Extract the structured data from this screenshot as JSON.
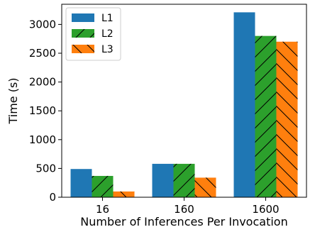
{
  "chart_data": {
    "type": "bar",
    "xlabel": "Number of Inferences Per Invocation",
    "ylabel": "Time (s)",
    "categories": [
      "16",
      "160",
      "1600"
    ],
    "ylim": [
      0,
      3350
    ],
    "yticks": [
      0,
      500,
      1000,
      1500,
      2000,
      2500,
      3000
    ],
    "grid": false,
    "legend_position": "top-left",
    "series": [
      {
        "name": "L1",
        "values": [
          490,
          580,
          3210
        ],
        "color": "#1f77b4",
        "hatch": "none"
      },
      {
        "name": "L2",
        "values": [
          370,
          580,
          2800
        ],
        "color": "#2ca02c",
        "hatch": "forward-diagonal"
      },
      {
        "name": "L3",
        "values": [
          100,
          340,
          2700
        ],
        "color": "#ff7f0e",
        "hatch": "back-diagonal"
      }
    ]
  }
}
